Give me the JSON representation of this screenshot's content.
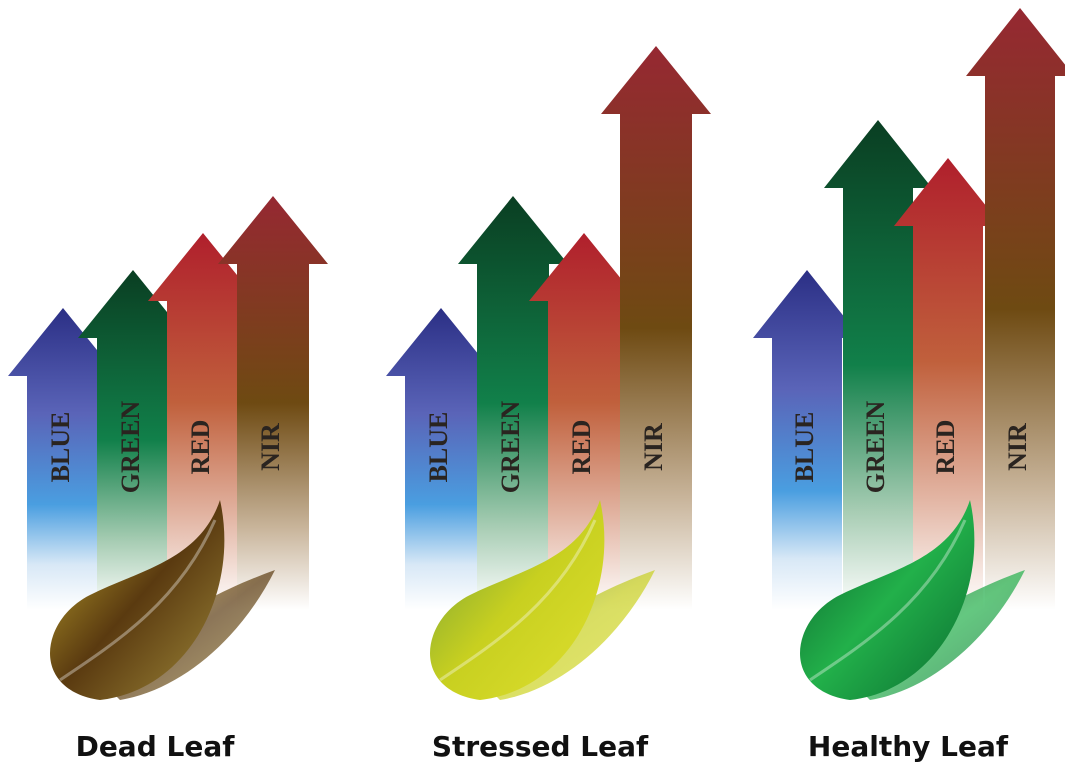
{
  "groups": [
    {
      "label": "Dead Leaf",
      "bands": [
        "BLUE",
        "GREEN",
        "RED",
        "NIR"
      ]
    },
    {
      "label": "Stressed Leaf",
      "bands": [
        "BLUE",
        "GREEN",
        "RED",
        "NIR"
      ]
    },
    {
      "label": "Healthy Leaf",
      "bands": [
        "BLUE",
        "GREEN",
        "RED",
        "NIR"
      ]
    }
  ]
}
